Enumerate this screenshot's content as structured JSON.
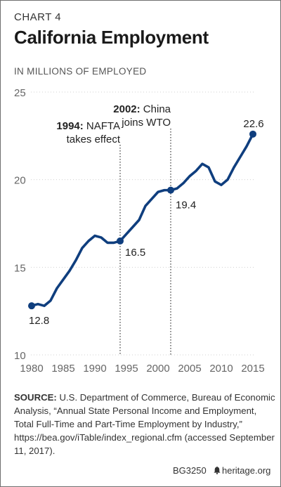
{
  "header": {
    "chart_label": "CHART 4",
    "title": "California Employment",
    "units": "IN MILLIONS OF EMPLOYED"
  },
  "colors": {
    "line": "#0f3e7e",
    "axis_text": "#666666",
    "gridline": "#d0d0d0",
    "annotation_line": "#444444"
  },
  "chart_data": {
    "type": "line",
    "title": "California Employment",
    "ylabel": "IN MILLIONS OF EMPLOYED",
    "xlabel": "",
    "xlim": [
      1980,
      2015
    ],
    "ylim": [
      10,
      25
    ],
    "x_ticks": [
      1980,
      1985,
      1990,
      1995,
      2000,
      2005,
      2010,
      2015
    ],
    "y_ticks": [
      10,
      15,
      20,
      25
    ],
    "grid": "horizontal dotted",
    "series": [
      {
        "x": [
          1980,
          1981,
          1982,
          1983,
          1984,
          1985,
          1986,
          1987,
          1988,
          1989,
          1990,
          1991,
          1992,
          1993,
          1994,
          1995,
          1996,
          1997,
          1998,
          1999,
          2000,
          2001,
          2002,
          2003,
          2004,
          2005,
          2006,
          2007,
          2008,
          2009,
          2010,
          2011,
          2012,
          2013,
          2014,
          2015
        ],
        "values": [
          12.8,
          12.9,
          12.8,
          13.1,
          13.8,
          14.3,
          14.8,
          15.4,
          16.1,
          16.5,
          16.8,
          16.7,
          16.4,
          16.4,
          16.5,
          16.9,
          17.3,
          17.7,
          18.5,
          18.9,
          19.3,
          19.4,
          19.4,
          19.5,
          19.8,
          20.2,
          20.5,
          20.9,
          20.7,
          19.9,
          19.7,
          20.0,
          20.7,
          21.3,
          21.9,
          22.6
        ]
      }
    ],
    "point_labels": [
      {
        "x": 1980,
        "y": 12.8,
        "text": "12.8"
      },
      {
        "x": 1994,
        "y": 16.5,
        "text": "16.5"
      },
      {
        "x": 2002,
        "y": 19.4,
        "text": "19.4"
      },
      {
        "x": 2015,
        "y": 22.6,
        "text": "22.6"
      }
    ],
    "annotations": [
      {
        "x": 1994,
        "bold": "1994:",
        "rest": " NAFTA",
        "line2": "takes effect"
      },
      {
        "x": 2002,
        "bold": "2002:",
        "rest": " China",
        "line2": "joins WTO"
      }
    ]
  },
  "source": {
    "label": "SOURCE:",
    "text": " U.S. Department of Commerce, Bureau of Economic Analysis, “Annual State Personal Income and Employment, Total Full-Time and Part-Time Employment by Industry,” https://bea.gov/iTable/index_regional.cfm (accessed September 11, 2017)."
  },
  "footer": {
    "code": "BG3250",
    "bell_icon": "liberty-bell-icon",
    "site": "heritage.org"
  }
}
